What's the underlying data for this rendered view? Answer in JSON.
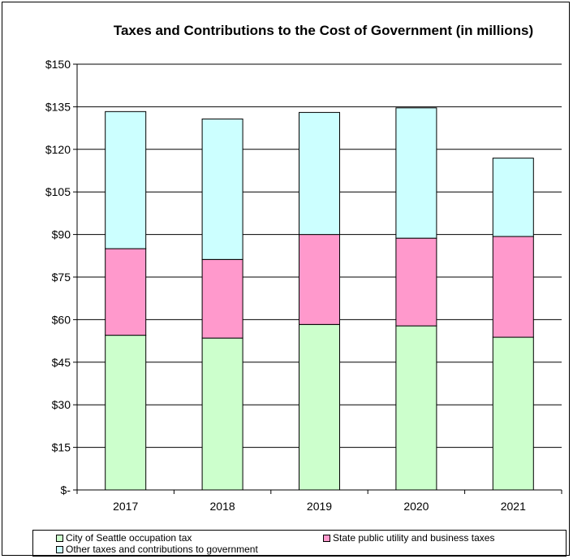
{
  "chart_data": {
    "type": "bar",
    "stacked": true,
    "title": "Taxes and Contributions to the Cost of Government (in millions)",
    "xlabel": "",
    "ylabel": "",
    "categories": [
      "2017",
      "2018",
      "2019",
      "2020",
      "2021"
    ],
    "series": [
      {
        "name": "City of Seattle occupation tax",
        "color": "#ccffcc",
        "values": [
          54.5,
          53.5,
          58.3,
          57.8,
          53.8
        ]
      },
      {
        "name": "State public utility and business taxes",
        "color": "#ff99cc",
        "values": [
          30.5,
          27.7,
          31.7,
          30.9,
          35.5
        ]
      },
      {
        "name": "Other taxes and contributions to government",
        "color": "#ccffff",
        "values": [
          48.3,
          49.5,
          43.0,
          45.9,
          27.6
        ]
      }
    ],
    "ylim": [
      0,
      150
    ],
    "yticks": [
      0,
      15,
      30,
      45,
      60,
      75,
      90,
      105,
      120,
      135,
      150
    ],
    "ytick_labels": [
      "$-",
      "$15",
      "$30",
      "$45",
      "$60",
      "$75",
      "$90",
      "$105",
      "$120",
      "$135",
      "$150"
    ],
    "grid": true,
    "legend_position": "bottom"
  }
}
